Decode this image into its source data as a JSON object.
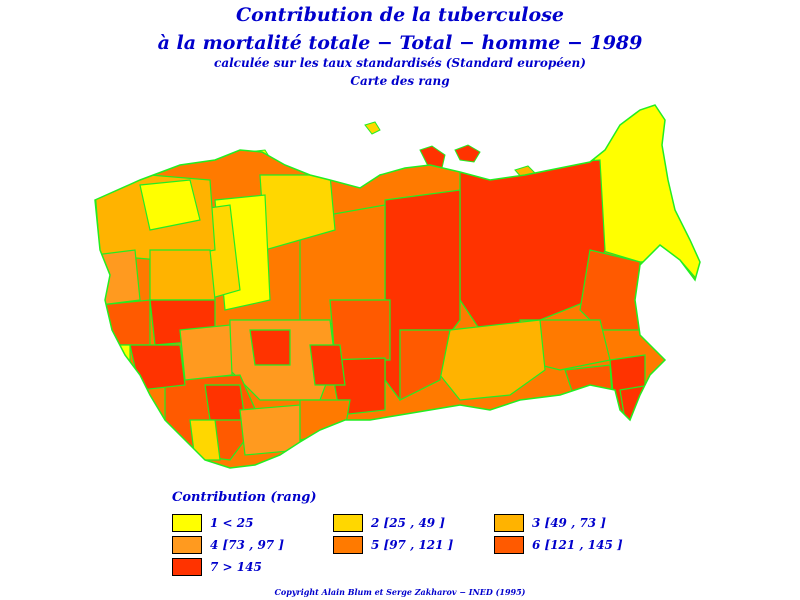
{
  "title": {
    "line1": "Contribution de la tuberculose",
    "line2": "à la mortalité totale − Total − homme − 1989",
    "line3": "calculée sur les taux standardisés (Standard européen)",
    "line4": "Carte des rang"
  },
  "legend": {
    "title": "Contribution (rang)",
    "items": [
      {
        "label": "1 < 25",
        "color": "#ffff00"
      },
      {
        "label": "2 [25 , 49 ]",
        "color": "#ffd700"
      },
      {
        "label": "3 [49 , 73 ]",
        "color": "#ffb300"
      },
      {
        "label": "4 [73 , 97 ]",
        "color": "#ff9a1f"
      },
      {
        "label": "5 [97 , 121 ]",
        "color": "#ff7a00"
      },
      {
        "label": "6 [121 , 145 ]",
        "color": "#ff5a00"
      },
      {
        "label": "7 > 145",
        "color": "#ff3300"
      }
    ]
  },
  "copyright": "Copyright Alain Blum et Serge Zakharov − INED (1995)"
}
